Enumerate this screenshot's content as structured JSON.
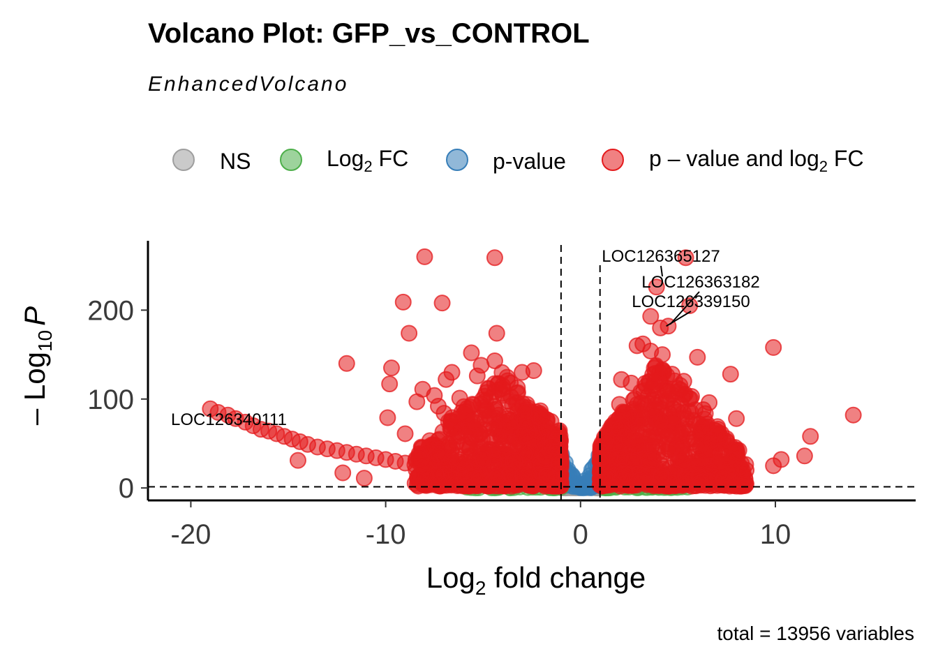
{
  "chart_data": {
    "type": "scatter",
    "title": "Volcano Plot: GFP_vs_CONTROL",
    "subtitle": "EnhancedVolcano",
    "caption": "total = 13956 variables",
    "xlabel": {
      "main": "Log",
      "sub": "2",
      "rest": " fold change"
    },
    "ylabel": {
      "pre": "– Log",
      "sub": "10",
      "italic": "P"
    },
    "xlim": [
      -22.2,
      17.2
    ],
    "ylim": [
      -14,
      278
    ],
    "x_ticks": [
      -20,
      -10,
      0,
      10
    ],
    "x_tick_labels": [
      "-20",
      "-10",
      "0",
      "10"
    ],
    "y_ticks": [
      0,
      100,
      200
    ],
    "y_tick_labels": [
      "0",
      "100",
      "200"
    ],
    "fc_cutoff": 1,
    "p_cutoff_neglog10": 1.3,
    "legend": [
      {
        "key": "ns",
        "label": "NS",
        "color": "#9e9e9e"
      },
      {
        "key": "fc",
        "label": "Log",
        "sub": "2",
        "label_rest": " FC",
        "color": "#4daf4a"
      },
      {
        "key": "p",
        "label": "p-value",
        "color": "#377eb8"
      },
      {
        "key": "both",
        "label": "p – value and log",
        "sub": "2",
        "label_rest": " FC",
        "color": "#e41a1c"
      }
    ],
    "colors": {
      "ns": "#9e9e9e",
      "fc": "#4daf4a",
      "p": "#377eb8",
      "both": "#e41a1c"
    },
    "labeled_genes": [
      {
        "name": "LOC126365127",
        "x": 4.2,
        "y": 238
      },
      {
        "name": "LOC126363182",
        "x": 4.6,
        "y": 184
      },
      {
        "name": "LOC126339150",
        "x": 4.4,
        "y": 182
      },
      {
        "name": "LOC126340111",
        "x": -18.9,
        "y": 89
      }
    ],
    "points": [
      [
        -8.0,
        260
      ],
      [
        -4.4,
        259
      ],
      [
        5.4,
        259
      ],
      [
        -9.1,
        209
      ],
      [
        -7.1,
        208
      ],
      [
        3.9,
        226
      ],
      [
        5.6,
        205
      ],
      [
        3.6,
        193
      ],
      [
        4.5,
        182
      ],
      [
        4.1,
        180
      ],
      [
        -4.3,
        174
      ],
      [
        -8.8,
        174
      ],
      [
        9.9,
        158
      ],
      [
        2.9,
        160
      ],
      [
        3.2,
        162
      ],
      [
        3.6,
        154
      ],
      [
        4.2,
        150
      ],
      [
        -5.6,
        152
      ],
      [
        -4.4,
        143
      ],
      [
        -12.0,
        140
      ],
      [
        -9.7,
        135
      ],
      [
        -6.6,
        130
      ],
      [
        -5.1,
        138
      ],
      [
        6.0,
        147
      ],
      [
        7.7,
        128
      ],
      [
        -2.4,
        132
      ],
      [
        -3.0,
        130
      ],
      [
        -5.3,
        126
      ],
      [
        -6.9,
        122
      ],
      [
        -9.8,
        117
      ],
      [
        -8.1,
        111
      ],
      [
        -4.0,
        115
      ],
      [
        -3.6,
        118
      ],
      [
        2.1,
        122
      ],
      [
        2.6,
        118
      ],
      [
        4.7,
        128
      ],
      [
        5.3,
        120
      ],
      [
        -7.5,
        104
      ],
      [
        -8.4,
        97
      ],
      [
        -6.2,
        101
      ],
      [
        5.0,
        112
      ],
      [
        5.7,
        103
      ],
      [
        6.3,
        88
      ],
      [
        6.6,
        96
      ],
      [
        8.0,
        78
      ],
      [
        14.0,
        82
      ],
      [
        11.8,
        58
      ],
      [
        -9.9,
        79
      ],
      [
        -9.0,
        61
      ],
      [
        -7.3,
        92
      ],
      [
        -7.0,
        84
      ],
      [
        -5.9,
        86
      ],
      [
        2.0,
        94
      ],
      [
        2.2,
        84
      ],
      [
        6.1,
        72
      ],
      [
        -19.0,
        89
      ],
      [
        -18.6,
        85
      ],
      [
        -18.1,
        82
      ],
      [
        -17.7,
        78
      ],
      [
        -17.2,
        74
      ],
      [
        -16.8,
        70
      ],
      [
        -16.4,
        66
      ],
      [
        -16.0,
        64
      ],
      [
        -15.6,
        61
      ],
      [
        -15.2,
        58
      ],
      [
        -14.8,
        55
      ],
      [
        -14.4,
        52
      ],
      [
        -14.0,
        49
      ],
      [
        -13.5,
        46
      ],
      [
        -13.0,
        44
      ],
      [
        -12.5,
        42
      ],
      [
        -12.0,
        40
      ],
      [
        -11.5,
        38
      ],
      [
        -11.0,
        36
      ],
      [
        -10.5,
        34
      ],
      [
        -10.0,
        32
      ],
      [
        -9.5,
        30
      ],
      [
        -9.0,
        28
      ],
      [
        -8.5,
        26
      ],
      [
        -8.0,
        24
      ],
      [
        -14.5,
        31
      ],
      [
        -12.2,
        17
      ],
      [
        -11.1,
        11
      ],
      [
        -8.0,
        15
      ],
      [
        11.5,
        36
      ],
      [
        10.3,
        32
      ],
      [
        9.9,
        25
      ],
      [
        8.5,
        20
      ],
      [
        8.2,
        24
      ],
      [
        7.8,
        28
      ],
      [
        7.2,
        30
      ],
      [
        6.4,
        42
      ],
      [
        6.0,
        48
      ],
      [
        5.8,
        55
      ],
      [
        6.2,
        62
      ],
      [
        7.5,
        18
      ]
    ]
  }
}
